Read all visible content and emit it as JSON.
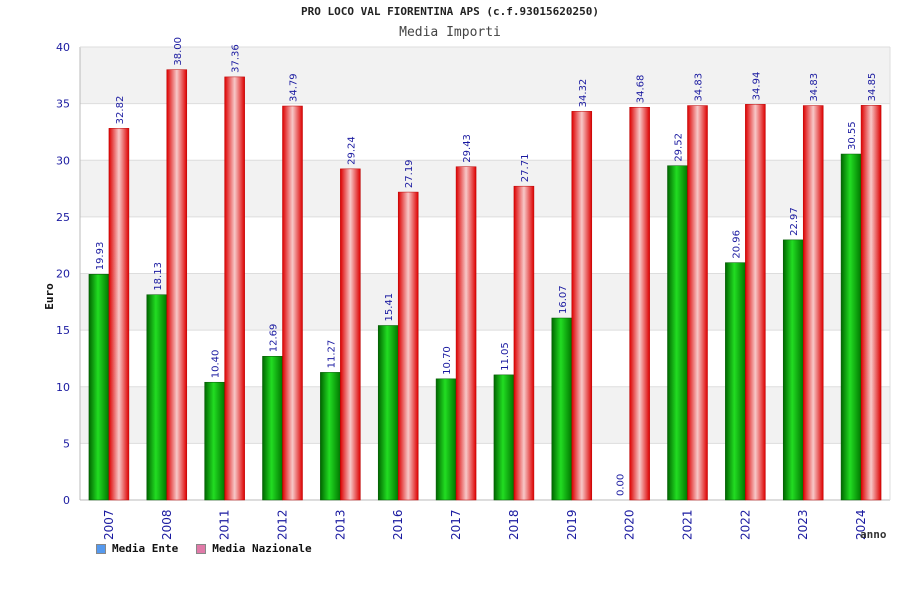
{
  "chart_data": {
    "type": "bar",
    "title": "PRO LOCO VAL FIORENTINA APS (c.f.93015620250)",
    "subtitle": "Media Importi",
    "ylabel": "Euro",
    "xlabel": "anno",
    "ylim": [
      0,
      40
    ],
    "yticks": [
      0,
      5,
      10,
      15,
      20,
      25,
      30,
      35,
      40
    ],
    "categories": [
      "2007",
      "2008",
      "2011",
      "2012",
      "2013",
      "2016",
      "2017",
      "2018",
      "2019",
      "2020",
      "2021",
      "2022",
      "2023",
      "2024"
    ],
    "series": [
      {
        "name": "Media Ente",
        "color": "#00aa00",
        "values": [
          19.93,
          18.13,
          10.4,
          12.69,
          11.27,
          15.41,
          10.7,
          11.05,
          16.07,
          0.0,
          29.52,
          20.96,
          22.97,
          30.55
        ],
        "labels": [
          "19.93",
          "18.13",
          "10.40",
          "12.69",
          "11.27",
          "15.41",
          "10.70",
          "11.05",
          "16.07",
          "0.00",
          "29.52",
          "20.96",
          "22.97",
          "30.55"
        ]
      },
      {
        "name": "Media Nazionale",
        "color": "#ee2222",
        "values": [
          32.82,
          38.0,
          37.36,
          34.79,
          29.24,
          27.19,
          29.43,
          27.71,
          34.32,
          34.68,
          34.83,
          34.94,
          34.83,
          34.85
        ],
        "labels": [
          "32.82",
          "38.00",
          "37.36",
          "34.79",
          "29.24",
          "27.19",
          "29.43",
          "27.71",
          "34.32",
          "34.68",
          "34.83",
          "34.94",
          "34.83",
          "34.85"
        ]
      }
    ],
    "legend": [
      {
        "name": "Media Ente",
        "color": "#5599ee"
      },
      {
        "name": "Media Nazionale",
        "color": "#e07aa8"
      }
    ]
  }
}
